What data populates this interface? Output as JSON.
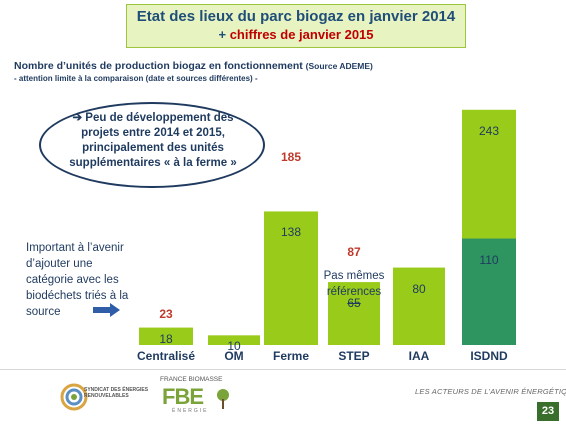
{
  "header": {
    "title": "Etat des lieux du parc biogaz en janvier 2014",
    "subtitle_plus": "+",
    "subtitle_rest": "chiffres de janvier 2015"
  },
  "chart_data": {
    "type": "bar",
    "title": "Nombre d’unités de production biogaz en fonctionnement",
    "source": "(Source ADEME)",
    "caveat": "- attention limite à la comparaison (date et sources différentes) -",
    "categories": [
      "Centralisé",
      "OM",
      "Ferme",
      "STEP",
      "IAA",
      "ISDND"
    ],
    "series": [
      {
        "values": [
          18,
          10,
          138,
          65,
          80,
          110
        ]
      },
      {
        "values": [
          23,
          null,
          185,
          87,
          null,
          243
        ]
      }
    ],
    "ylim": [
      0,
      250
    ]
  },
  "callout": {
    "arrow": "➔",
    "text": "Peu de développement des projets entre 2014 et 2015, principalement des unités supplémentaires « à la ferme »"
  },
  "side_note": "Important à l’avenir d’ajouter une catégorie avec les biodéchets triés à la source",
  "step_note": "Pas mêmes références",
  "footer": {
    "seer_logo_text": "SYNDICAT DES ÉNERGIES RENOUVELABLES",
    "fbe_top": "FRANCE BIOMASSE",
    "fbe_mark": "FBE",
    "fbe_bottom": "ÉNERGIE",
    "tagline": "LES ACTEURS DE L’AVENIR ÉNERGÉTIQUE",
    "page_number": "23"
  },
  "colors": {
    "bar": "#99cc1a",
    "bar_dark": "#2e9560",
    "value_2015": "#c0392b",
    "title_navy": "#1f4e79"
  }
}
